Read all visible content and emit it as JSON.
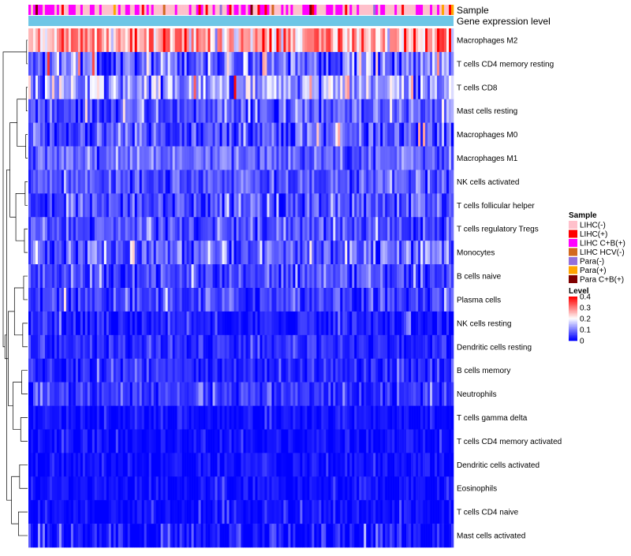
{
  "chart_data": {
    "type": "heatmap",
    "title": "",
    "annotations": [
      {
        "name": "Sample"
      },
      {
        "name": "Gene expression level"
      }
    ],
    "rows": [
      {
        "label": "Macrophages M2",
        "mean": 0.27,
        "spread": 0.09
      },
      {
        "label": "T cells CD4 memory resting",
        "mean": 0.09,
        "spread": 0.07
      },
      {
        "label": "T cells CD8",
        "mean": 0.12,
        "spread": 0.08
      },
      {
        "label": "Mast cells resting",
        "mean": 0.06,
        "spread": 0.05
      },
      {
        "label": "Macrophages M0",
        "mean": 0.06,
        "spread": 0.06
      },
      {
        "label": "Macrophages M1",
        "mean": 0.08,
        "spread": 0.04
      },
      {
        "label": "NK cells activated",
        "mean": 0.06,
        "spread": 0.04
      },
      {
        "label": "T cells follicular helper",
        "mean": 0.06,
        "spread": 0.05
      },
      {
        "label": "T cells regulatory  Tregs",
        "mean": 0.06,
        "spread": 0.04
      },
      {
        "label": "Monocytes",
        "mean": 0.08,
        "spread": 0.05
      },
      {
        "label": "B cells naive",
        "mean": 0.05,
        "spread": 0.04
      },
      {
        "label": "Plasma cells",
        "mean": 0.05,
        "spread": 0.04
      },
      {
        "label": "NK cells resting",
        "mean": 0.02,
        "spread": 0.03
      },
      {
        "label": "Dendritic cells resting",
        "mean": 0.03,
        "spread": 0.03
      },
      {
        "label": "B cells memory",
        "mean": 0.03,
        "spread": 0.03
      },
      {
        "label": "Neutrophils",
        "mean": 0.04,
        "spread": 0.03
      },
      {
        "label": "T cells gamma delta",
        "mean": 0.01,
        "spread": 0.02
      },
      {
        "label": "T cells CD4 memory activated",
        "mean": 0.01,
        "spread": 0.02
      },
      {
        "label": "Dendritic cells activated",
        "mean": 0.01,
        "spread": 0.02
      },
      {
        "label": "Eosinophils",
        "mean": 0.01,
        "spread": 0.02
      },
      {
        "label": "T cells CD4 naive",
        "mean": 0.01,
        "spread": 0.02
      },
      {
        "label": "Mast cells activated",
        "mean": 0.02,
        "spread": 0.04
      }
    ],
    "n_samples": 180,
    "sample_groups": [
      {
        "label": "LIHC(-)",
        "color": "#ffc0cb"
      },
      {
        "label": "LIHC(+)",
        "color": "#ff0000"
      },
      {
        "label": "LIHC C+B(+)",
        "color": "#ff00ff"
      },
      {
        "label": "LIHC HCV(-)",
        "color": "#d2691e"
      },
      {
        "label": "Para(-)",
        "color": "#9370db"
      },
      {
        "label": "Para(+)",
        "color": "#ffa500"
      },
      {
        "label": "Para C+B(+)",
        "color": "#800000"
      }
    ],
    "sample_group_weights": [
      0.55,
      0.08,
      0.3,
      0.02,
      0.02,
      0.02,
      0.01
    ],
    "expression_level_color": "#6ec6e6",
    "legend_sample_title": "Sample",
    "legend_level_title": "Level",
    "level_ticks": [
      "0.4",
      "0.3",
      "0.2",
      "0.1",
      "0"
    ],
    "level_tick_values": [
      0.4,
      0.3,
      0.2,
      0.1,
      0
    ],
    "color_scale": {
      "min": 0,
      "max": 0.4,
      "low": "#0000ff",
      "mid": "#ffffff",
      "high": "#ff0000",
      "mid_value": 0.2
    },
    "row_dendrogram_merges": [
      [
        0,
        1
      ],
      [
        2,
        3
      ],
      [
        4,
        5
      ],
      [
        6,
        7
      ],
      [
        8,
        9
      ],
      [
        10,
        11
      ],
      [
        12,
        13
      ],
      [
        14,
        15
      ],
      [
        16,
        17
      ],
      [
        18,
        19
      ],
      [
        20,
        21
      ],
      [
        3,
        5
      ],
      [
        7,
        9
      ],
      [
        11,
        13
      ],
      [
        15,
        17
      ],
      [
        19,
        21
      ],
      [
        5,
        9
      ],
      [
        13,
        17
      ],
      [
        9,
        21
      ],
      [
        17,
        21
      ],
      [
        1,
        21
      ]
    ]
  }
}
